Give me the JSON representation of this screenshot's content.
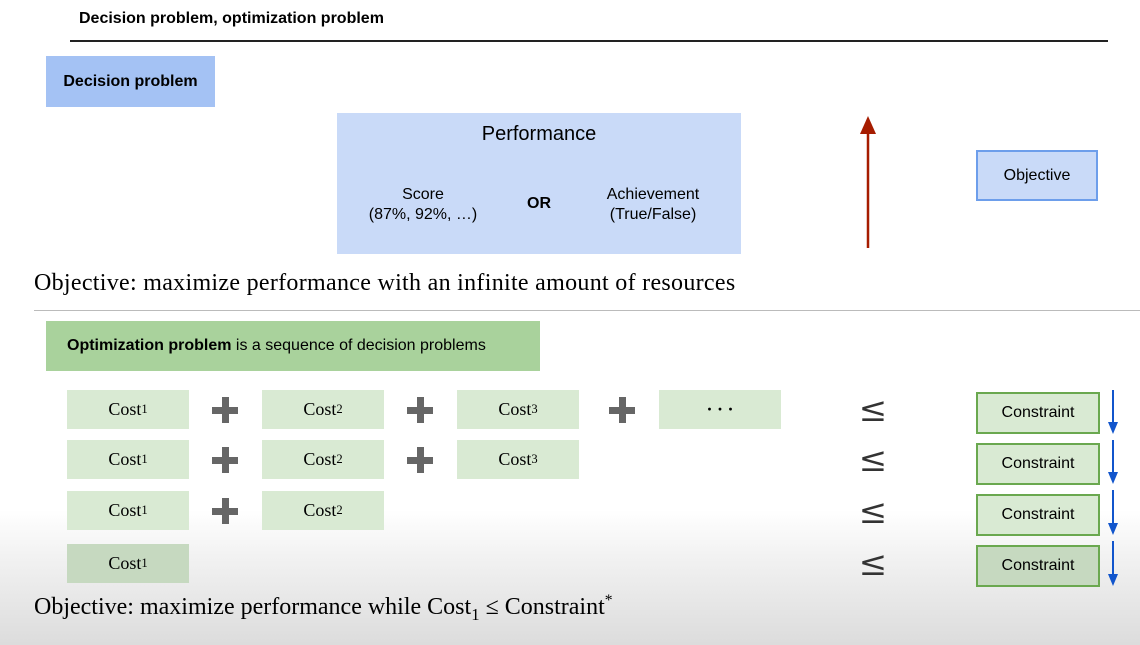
{
  "header": {
    "title": "Decision problem, optimization problem"
  },
  "decision": {
    "label": "Decision problem",
    "performance_title": "Performance",
    "score_line1": "Score",
    "score_line2": "(87%, 92%, …)",
    "or_text": "OR",
    "achievement_line1": "Achievement",
    "achievement_line2": "(True/False)",
    "objective_box": "Objective",
    "objective_text": "Objective: maximize performance with an infinite amount of resources",
    "arrow_color": "#a61c00"
  },
  "optimization": {
    "label_bold": "Optimization problem",
    "label_rest": " is a sequence of decision problems",
    "cost_base": "Cost",
    "cost_subs": [
      "1",
      "2",
      "3"
    ],
    "ellipsis": "· · ·",
    "leq": "≤",
    "constraint_label": "Constraint",
    "arrow_color": "#1155cc",
    "objective_prefix": "Objective: maximize performance while Cost",
    "objective_sub": "1",
    "objective_leq": " ≤ ",
    "objective_constraint": "Constraint",
    "objective_star": "*"
  }
}
